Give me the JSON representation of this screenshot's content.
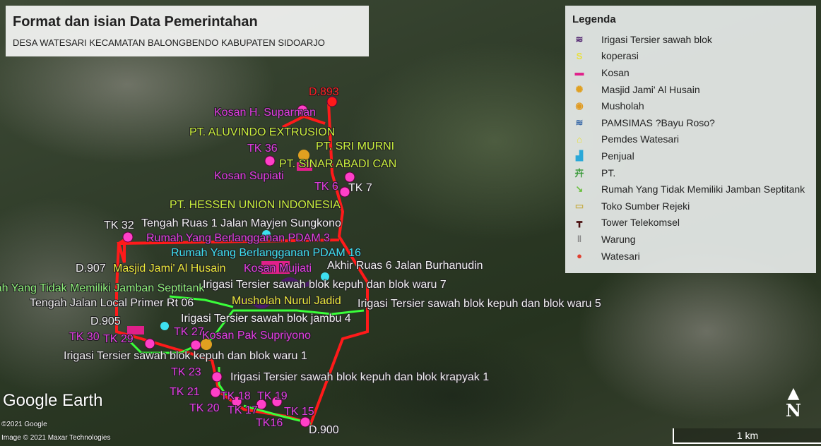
{
  "title": {
    "heading": "Format dan isian Data Pemerintahan",
    "subtitle": "DESA WATESARI KECAMATAN BALONGBENDO KABUPATEN SIDOARJO"
  },
  "legend": {
    "heading": "Legenda",
    "items": [
      {
        "label": "Irigasi Tersier sawah blok",
        "icon": "wave-icon",
        "color": "#4a1a6a"
      },
      {
        "label": "koperasi",
        "icon": "dollar-icon",
        "color": "#e8e040"
      },
      {
        "label": "Kosan",
        "icon": "bed-icon",
        "color": "#e0208a"
      },
      {
        "label": "Masjid Jami' Al Husain",
        "icon": "sun-icon",
        "color": "#e0a020"
      },
      {
        "label": "Musholah",
        "icon": "mosque-icon",
        "color": "#e09a20"
      },
      {
        "label": "PAMSIMAS ?Bayu Roso?",
        "icon": "water-icon",
        "color": "#3a6aa8"
      },
      {
        "label": "Pemdes Watesari",
        "icon": "house-icon",
        "color": "#e8e030"
      },
      {
        "label": "Penjual",
        "icon": "shop-icon",
        "color": "#2aa8d8"
      },
      {
        "label": "PT.",
        "icon": "factory-icon",
        "color": "#3a9a3a"
      },
      {
        "label": "Rumah Yang Tidak Memiliki Jamban Septitank",
        "icon": "arrow-icon",
        "color": "#6ac040"
      },
      {
        "label": "Toko Sumber Rejeki",
        "icon": "basket-icon",
        "color": "#c8b050"
      },
      {
        "label": "Tower Telekomsel",
        "icon": "tower-icon",
        "color": "#4a1010"
      },
      {
        "label": "Warung",
        "icon": "utensils-icon",
        "color": "#888888"
      },
      {
        "label": "Watesari",
        "icon": "pin-icon",
        "color": "#e04030"
      }
    ]
  },
  "labels": [
    {
      "text": "D.893",
      "color": "red"
    },
    {
      "text": "Kosan  H. Suparman",
      "color": "magenta"
    },
    {
      "text": "PT. ALUVINDO EXTRUSION",
      "color": "yellowgreen"
    },
    {
      "text": "TK 36",
      "color": "magenta"
    },
    {
      "text": "PT. SRI MURNI",
      "color": "yellowgreen"
    },
    {
      "text": "PT. SINAR ABADI CAN",
      "color": "yellowgreen"
    },
    {
      "text": "Kosan Supiati",
      "color": "magenta"
    },
    {
      "text": "TK 6",
      "color": "magenta"
    },
    {
      "text": "TK 7",
      "color": "white"
    },
    {
      "text": "PT. HESSEN UNION INDONESIA",
      "color": "yellowgreen"
    },
    {
      "text": "TK 32",
      "color": "white"
    },
    {
      "text": "Tengah Ruas 1 Jalan Mayjen Sungkono",
      "color": "white"
    },
    {
      "text": "Rumah Yang Berlangganan PDAM 3",
      "color": "magenta"
    },
    {
      "text": "Rumah Yang Berlangganan PDAM 16",
      "color": "cyan"
    },
    {
      "text": "D.907",
      "color": "white"
    },
    {
      "text": "Masjid Jami' Al Husain",
      "color": "yellow"
    },
    {
      "text": "Kosan Mujiati",
      "color": "magenta"
    },
    {
      "text": "Akhir Ruas 6 Jalan Burhanudin",
      "color": "white"
    },
    {
      "text": "Rumah Yang Tidak Memiliki Jamban Septitank",
      "color": "lightgreen"
    },
    {
      "text": "Irigasi Tersier sawah blok kepuh dan blok waru 7",
      "color": "white"
    },
    {
      "text": "Tengah Jalan Local Primer Rt 06",
      "color": "white"
    },
    {
      "text": "Musholah Nurul Jadid",
      "color": "yellow"
    },
    {
      "text": "Irigasi Tersier sawah blok kepuh dan blok waru 5",
      "color": "white"
    },
    {
      "text": "Irigasi Tersier sawah blok jambu 4",
      "color": "white"
    },
    {
      "text": "D.905",
      "color": "white"
    },
    {
      "text": "TK 30",
      "color": "magenta"
    },
    {
      "text": "TK 29",
      "color": "magenta"
    },
    {
      "text": "TK 27",
      "color": "magenta"
    },
    {
      "text": "Kosan Pak Supriyono",
      "color": "magenta"
    },
    {
      "text": "Irigasi Tersier sawah blok kepuh dan blok waru 1",
      "color": "white"
    },
    {
      "text": "TK 23",
      "color": "magenta"
    },
    {
      "text": "Irigasi Tersier sawah blok kepuh dan blok krapyak 1",
      "color": "white"
    },
    {
      "text": "TK 21",
      "color": "magenta"
    },
    {
      "text": "TK 18",
      "color": "magenta"
    },
    {
      "text": "TK 19",
      "color": "magenta"
    },
    {
      "text": "TK 20",
      "color": "magenta"
    },
    {
      "text": "TK 17",
      "color": "magenta"
    },
    {
      "text": "TK 15",
      "color": "magenta"
    },
    {
      "text": "TK16",
      "color": "magenta"
    },
    {
      "text": "D.900",
      "color": "white"
    }
  ],
  "branding": {
    "logo": "Google Earth",
    "copyright1": "©2021 Google",
    "copyright2": "Image © 2021 Maxar Technologies"
  },
  "compass": {
    "arrow": "▲",
    "letter": "N"
  },
  "scale_bar": {
    "label": "1 km"
  },
  "colors": {
    "boundary": "#ff1a1a",
    "irrigation": "#3aff3a",
    "pin": "#ff40c8"
  }
}
